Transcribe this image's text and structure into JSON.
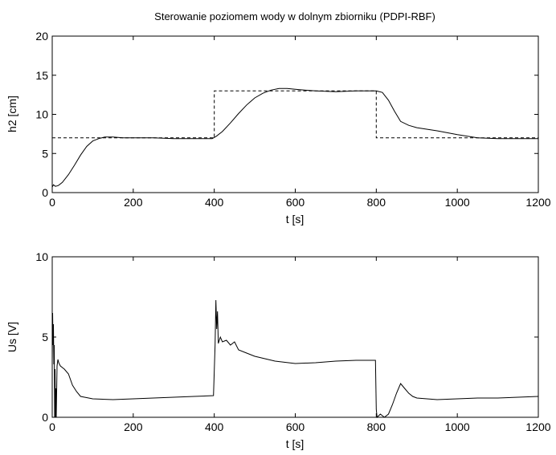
{
  "chart_data": [
    {
      "type": "line",
      "title": "Sterowanie poziomem wody w dolnym zbiorniku (PDPI-RBF)",
      "xlabel": "t [s]",
      "ylabel": "h2 [cm]",
      "xlim": [
        0,
        1200
      ],
      "ylim": [
        0,
        20
      ],
      "xticks": [
        "0",
        "200",
        "400",
        "600",
        "800",
        "1000",
        "1200"
      ],
      "yticks": [
        "0",
        "5",
        "10",
        "15",
        "20"
      ],
      "grid": false,
      "legend": "none",
      "series": [
        {
          "style": "dashed",
          "color": "#000000",
          "x": [
            0,
            400,
            400,
            800,
            800,
            1200
          ],
          "y": [
            7,
            7,
            13,
            13,
            7,
            7
          ]
        },
        {
          "style": "solid",
          "color": "#000000",
          "x": [
            0,
            3,
            8,
            15,
            25,
            40,
            55,
            70,
            85,
            100,
            115,
            130,
            150,
            175,
            200,
            250,
            300,
            350,
            395,
            405,
            420,
            440,
            460,
            480,
            500,
            520,
            540,
            560,
            580,
            600,
            650,
            700,
            750,
            800,
            815,
            830,
            845,
            860,
            880,
            900,
            950,
            1000,
            1050,
            1100,
            1150,
            1200
          ],
          "y": [
            0.7,
            1.0,
            0.8,
            0.9,
            1.3,
            2.3,
            3.5,
            4.8,
            5.9,
            6.6,
            6.9,
            7.1,
            7.1,
            7.0,
            7.0,
            7.0,
            6.9,
            6.9,
            6.9,
            7.2,
            7.8,
            8.9,
            10.1,
            11.2,
            12.1,
            12.7,
            13.1,
            13.3,
            13.3,
            13.2,
            13.0,
            12.9,
            13.0,
            13.0,
            12.8,
            11.8,
            10.4,
            9.1,
            8.6,
            8.3,
            7.9,
            7.4,
            7.0,
            6.9,
            6.9,
            6.9
          ]
        }
      ]
    },
    {
      "type": "line",
      "xlabel": "t [s]",
      "ylabel": "Us [V]",
      "xlim": [
        0,
        1200
      ],
      "ylim": [
        0,
        10
      ],
      "xticks": [
        "0",
        "200",
        "400",
        "600",
        "800",
        "1000",
        "1200"
      ],
      "yticks": [
        "0",
        "5",
        "10"
      ],
      "grid": false,
      "legend": "none",
      "series": [
        {
          "style": "solid",
          "color": "#000000",
          "x": [
            0,
            1,
            2,
            3,
            4,
            5,
            6,
            7,
            8,
            9,
            10,
            12,
            14,
            16,
            20,
            30,
            40,
            50,
            60,
            70,
            80,
            90,
            100,
            150,
            200,
            250,
            300,
            350,
            398,
            402,
            404,
            406,
            408,
            410,
            415,
            420,
            430,
            440,
            450,
            460,
            480,
            500,
            550,
            600,
            650,
            700,
            750,
            798,
            800,
            802,
            810,
            820,
            830,
            840,
            850,
            860,
            870,
            880,
            890,
            900,
            950,
            1000,
            1050,
            1100,
            1150,
            1200
          ],
          "y": [
            3.5,
            6.5,
            4.5,
            5.8,
            3.3,
            4.5,
            0,
            3,
            0,
            1.8,
            0,
            3.2,
            3.6,
            3.4,
            3.2,
            3.0,
            2.7,
            2.0,
            1.6,
            1.3,
            1.25,
            1.2,
            1.15,
            1.1,
            1.15,
            1.2,
            1.25,
            1.3,
            1.35,
            4.5,
            7.3,
            5.5,
            6.6,
            4.6,
            5.0,
            4.7,
            4.8,
            4.5,
            4.7,
            4.2,
            4.0,
            3.8,
            3.5,
            3.35,
            3.4,
            3.5,
            3.55,
            3.55,
            0.5,
            0,
            0.2,
            0,
            0.2,
            0.8,
            1.5,
            2.1,
            1.8,
            1.5,
            1.3,
            1.2,
            1.1,
            1.15,
            1.2,
            1.2,
            1.25,
            1.3
          ]
        }
      ]
    }
  ]
}
